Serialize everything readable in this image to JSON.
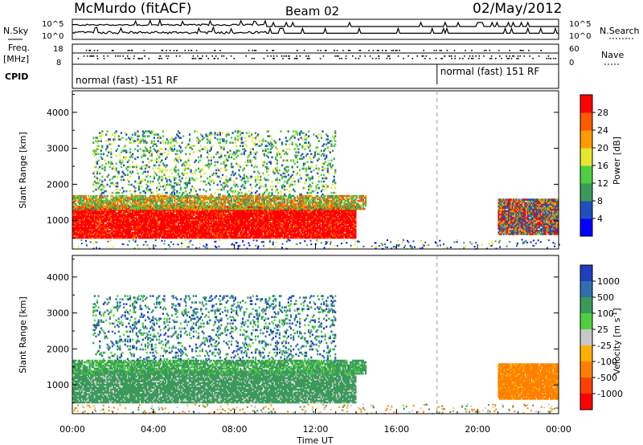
{
  "header": {
    "station": "McMurdo (fitACF)",
    "beam": "Beam 02",
    "date": "02/May/2012"
  },
  "noise_panel": {
    "left_label": "N.Sky",
    "right_label": "N.Search",
    "left_ticks": [
      "10^5",
      "10^0"
    ],
    "right_ticks": [
      "10^5",
      "10^0"
    ]
  },
  "freq_panel": {
    "left_label": "Freq.",
    "left_unit": "[MHz]",
    "right_label": "Nave",
    "left_ticks": [
      "18",
      "8"
    ],
    "right_ticks": [
      "60",
      "0"
    ]
  },
  "cpid_panel": {
    "label": "CPID",
    "segments": [
      {
        "text": "normal (fast) -151 RF",
        "start_hour": 0
      },
      {
        "text": "normal (fast) 151 RF",
        "start_hour": 18
      }
    ]
  },
  "chart_data": [
    {
      "type": "heatmap",
      "id": "power",
      "ylabel": "Slant Range [km]",
      "ylim": [
        200,
        4600
      ],
      "yticks": [
        1000,
        2000,
        3000,
        4000
      ],
      "xlim": [
        0,
        24
      ],
      "colorbar_label": "Power [dB]",
      "colorbar_ticks": [
        "4",
        "8",
        "12",
        "16",
        "20",
        "24",
        "28"
      ],
      "colorbar_colors": [
        "#0000ff",
        "#1f4fbf",
        "#3a9a5a",
        "#4fcf3f",
        "#e6e632",
        "#ff9a00",
        "#ff5a00",
        "#ff0000"
      ],
      "regions": [
        {
          "x0": 0,
          "x1": 14,
          "y0": 500,
          "y1": 1400,
          "level": 28
        },
        {
          "x0": 0,
          "x1": 14.5,
          "y0": 1300,
          "y1": 1700,
          "level": 12
        },
        {
          "x0": 1,
          "x1": 13,
          "y0": 1700,
          "y1": 3500,
          "level": 10
        },
        {
          "x0": 21,
          "x1": 24,
          "y0": 600,
          "y1": 1600,
          "level": 20
        }
      ]
    },
    {
      "type": "heatmap",
      "id": "velocity",
      "ylabel": "Slant Range [km]",
      "ylim": [
        200,
        4600
      ],
      "yticks": [
        1000,
        2000,
        3000,
        4000
      ],
      "xlim": [
        0,
        24
      ],
      "xlabel": "Time UT",
      "xticks": [
        "00:00",
        "04:00",
        "08:00",
        "12:00",
        "16:00",
        "20:00",
        "00:00"
      ],
      "colorbar_label": "Velocity [m s",
      "colorbar_label_sup": "-1",
      "colorbar_label_end": "]",
      "colorbar_ticks": [
        "1000",
        "500",
        "100",
        "25",
        "-25",
        "-100",
        "-500",
        "-1000"
      ],
      "colorbar_colors": [
        "#1f3fbf",
        "#2f6faf",
        "#3a9a5a",
        "#4fcf3f",
        "#c8c8c8",
        "#ffb000",
        "#ff8000",
        "#ff4000",
        "#ff0000"
      ],
      "regions": [
        {
          "x0": 0,
          "x1": 14,
          "y0": 500,
          "y1": 1400,
          "velocity": 100
        },
        {
          "x0": 0,
          "x1": 14.5,
          "y0": 1300,
          "y1": 1700,
          "velocity": 100
        },
        {
          "x0": 1,
          "x1": 13,
          "y0": 1700,
          "y1": 3500,
          "velocity": 100
        },
        {
          "x0": 21,
          "x1": 24,
          "y0": 600,
          "y1": 1600,
          "velocity": -100
        }
      ]
    }
  ]
}
